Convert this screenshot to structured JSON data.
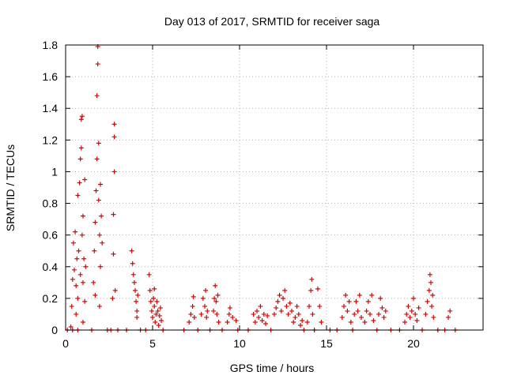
{
  "chart_data": {
    "type": "scatter",
    "title": "Day 013 of 2017, SRMTID for receiver saga",
    "xlabel": "GPS time / hours",
    "ylabel": "SRMTID / TECUs",
    "xlim": [
      0,
      24
    ],
    "ylim": [
      0,
      1.8
    ],
    "xticks": [
      "0",
      "5",
      "10",
      "15",
      "20"
    ],
    "xtick_values": [
      0,
      5,
      10,
      15,
      20
    ],
    "yticks": [
      "0",
      "0.2",
      "0.4",
      "0.6",
      "0.8",
      "1",
      "1.2",
      "1.4",
      "1.6",
      "1.8"
    ],
    "ytick_values": [
      0,
      0.2,
      0.4,
      0.6,
      0.8,
      1.0,
      1.2,
      1.4,
      1.6,
      1.8
    ],
    "grid": true,
    "marker": "plus",
    "color": "#e00000",
    "series": [
      {
        "name": "SRMTID",
        "points": [
          [
            0.3,
            0.02
          ],
          [
            0.35,
            0.15
          ],
          [
            0.4,
            0.32
          ],
          [
            0.45,
            0.55
          ],
          [
            0.5,
            0.38
          ],
          [
            0.55,
            0.62
          ],
          [
            0.6,
            0.28
          ],
          [
            0.65,
            0.45
          ],
          [
            0.7,
            0.85
          ],
          [
            0.7,
            0.2
          ],
          [
            0.75,
            0.5
          ],
          [
            0.8,
            0.93
          ],
          [
            0.85,
            1.08
          ],
          [
            0.9,
            1.15
          ],
          [
            0.9,
            1.33
          ],
          [
            0.95,
            1.35
          ],
          [
            0.95,
            0.6
          ],
          [
            1.0,
            0.3
          ],
          [
            1.0,
            0.72
          ],
          [
            1.05,
            0.45
          ],
          [
            1.1,
            0.18
          ],
          [
            1.1,
            0.95
          ],
          [
            1.15,
            0.4
          ],
          [
            0.6,
            0.1
          ],
          [
            0.85,
            0.35
          ],
          [
            1.0,
            0.05
          ],
          [
            1.6,
            0.3
          ],
          [
            1.65,
            0.5
          ],
          [
            1.7,
            0.68
          ],
          [
            1.75,
            0.88
          ],
          [
            1.8,
            1.08
          ],
          [
            1.8,
            1.48
          ],
          [
            1.85,
            1.68
          ],
          [
            1.85,
            1.79
          ],
          [
            1.9,
            1.18
          ],
          [
            1.9,
            0.82
          ],
          [
            1.95,
            0.6
          ],
          [
            2.0,
            0.4
          ],
          [
            2.0,
            0.92
          ],
          [
            2.05,
            0.72
          ],
          [
            2.1,
            0.55
          ],
          [
            1.7,
            0.22
          ],
          [
            1.95,
            0.15
          ],
          [
            2.7,
            0.2
          ],
          [
            2.75,
            0.48
          ],
          [
            2.75,
            0.73
          ],
          [
            2.8,
            1.0
          ],
          [
            2.8,
            1.22
          ],
          [
            2.8,
            1.3
          ],
          [
            2.85,
            0.25
          ],
          [
            3.8,
            0.5
          ],
          [
            3.85,
            0.42
          ],
          [
            3.9,
            0.35
          ],
          [
            3.95,
            0.3
          ],
          [
            4.0,
            0.25
          ],
          [
            4.05,
            0.18
          ],
          [
            4.1,
            0.12
          ],
          [
            4.1,
            0.08
          ],
          [
            4.15,
            0.22
          ],
          [
            4.8,
            0.35
          ],
          [
            4.85,
            0.25
          ],
          [
            4.9,
            0.18
          ],
          [
            4.95,
            0.12
          ],
          [
            5.0,
            0.08
          ],
          [
            5.05,
            0.2
          ],
          [
            5.1,
            0.15
          ],
          [
            5.15,
            0.05
          ],
          [
            5.2,
            0.1
          ],
          [
            5.25,
            0.18
          ],
          [
            5.3,
            0.12
          ],
          [
            5.35,
            0.03
          ],
          [
            5.4,
            0.09
          ],
          [
            5.45,
            0.14
          ],
          [
            5.5,
            0.06
          ],
          [
            5.1,
            0.26
          ],
          [
            7.1,
            0.05
          ],
          [
            7.2,
            0.1
          ],
          [
            7.3,
            0.15
          ],
          [
            7.35,
            0.21
          ],
          [
            7.4,
            0.08
          ],
          [
            7.8,
            0.1
          ],
          [
            7.9,
            0.2
          ],
          [
            8.0,
            0.15
          ],
          [
            8.05,
            0.25
          ],
          [
            8.1,
            0.08
          ],
          [
            8.15,
            0.12
          ],
          [
            8.5,
            0.12
          ],
          [
            8.55,
            0.2
          ],
          [
            8.6,
            0.28
          ],
          [
            8.65,
            0.18
          ],
          [
            8.7,
            0.1
          ],
          [
            8.75,
            0.22
          ],
          [
            8.8,
            0.05
          ],
          [
            9.3,
            0.05
          ],
          [
            9.4,
            0.1
          ],
          [
            9.45,
            0.14
          ],
          [
            9.6,
            0.08
          ],
          [
            9.8,
            0.06
          ],
          [
            10.8,
            0.1
          ],
          [
            10.9,
            0.05
          ],
          [
            11.0,
            0.12
          ],
          [
            11.1,
            0.08
          ],
          [
            11.2,
            0.15
          ],
          [
            11.3,
            0.06
          ],
          [
            11.4,
            0.1
          ],
          [
            11.5,
            0.04
          ],
          [
            11.6,
            0.09
          ],
          [
            12.0,
            0.1
          ],
          [
            12.1,
            0.14
          ],
          [
            12.2,
            0.18
          ],
          [
            12.3,
            0.22
          ],
          [
            12.4,
            0.12
          ],
          [
            12.5,
            0.2
          ],
          [
            12.6,
            0.25
          ],
          [
            12.7,
            0.15
          ],
          [
            12.8,
            0.1
          ],
          [
            12.9,
            0.17
          ],
          [
            13.0,
            0.12
          ],
          [
            13.1,
            0.05
          ],
          [
            13.2,
            0.08
          ],
          [
            13.3,
            0.15
          ],
          [
            13.4,
            0.1
          ],
          [
            13.5,
            0.03
          ],
          [
            13.6,
            0.06
          ],
          [
            13.9,
            0.05
          ],
          [
            14.0,
            0.15
          ],
          [
            14.1,
            0.25
          ],
          [
            14.15,
            0.32
          ],
          [
            14.2,
            0.1
          ],
          [
            14.5,
            0.26
          ],
          [
            14.6,
            0.15
          ],
          [
            14.7,
            0.05
          ],
          [
            15.9,
            0.08
          ],
          [
            16.0,
            0.15
          ],
          [
            16.1,
            0.22
          ],
          [
            16.2,
            0.12
          ],
          [
            16.3,
            0.18
          ],
          [
            16.4,
            0.05
          ],
          [
            16.6,
            0.1
          ],
          [
            16.7,
            0.18
          ],
          [
            16.8,
            0.12
          ],
          [
            16.9,
            0.22
          ],
          [
            17.0,
            0.08
          ],
          [
            17.2,
            0.05
          ],
          [
            17.3,
            0.12
          ],
          [
            17.4,
            0.18
          ],
          [
            17.5,
            0.1
          ],
          [
            17.6,
            0.22
          ],
          [
            17.7,
            0.06
          ],
          [
            18.0,
            0.1
          ],
          [
            18.1,
            0.2
          ],
          [
            18.2,
            0.14
          ],
          [
            18.3,
            0.08
          ],
          [
            18.4,
            0.12
          ],
          [
            19.5,
            0.05
          ],
          [
            19.6,
            0.1
          ],
          [
            19.7,
            0.15
          ],
          [
            19.8,
            0.08
          ],
          [
            19.9,
            0.12
          ],
          [
            20.0,
            0.2
          ],
          [
            20.1,
            0.1
          ],
          [
            20.2,
            0.06
          ],
          [
            20.3,
            0.14
          ],
          [
            20.7,
            0.1
          ],
          [
            20.8,
            0.18
          ],
          [
            20.9,
            0.25
          ],
          [
            21.0,
            0.3
          ],
          [
            20.95,
            0.35
          ],
          [
            21.05,
            0.15
          ],
          [
            21.1,
            0.22
          ],
          [
            21.15,
            0.08
          ],
          [
            22.0,
            0.08
          ],
          [
            22.1,
            0.12
          ],
          [
            0.1,
            0.0
          ],
          [
            0.4,
            0.0
          ],
          [
            0.7,
            0.0
          ],
          [
            1.5,
            0.0
          ],
          [
            2.4,
            0.0
          ],
          [
            2.6,
            0.0
          ],
          [
            3.0,
            0.0
          ],
          [
            3.5,
            0.0
          ],
          [
            4.3,
            0.0
          ],
          [
            4.6,
            0.0
          ],
          [
            5.6,
            0.0
          ],
          [
            6.8,
            0.0
          ],
          [
            7.6,
            0.0
          ],
          [
            8.3,
            0.0
          ],
          [
            9.0,
            0.0
          ],
          [
            9.9,
            0.0
          ],
          [
            10.5,
            0.0
          ],
          [
            11.8,
            0.0
          ],
          [
            13.7,
            0.0
          ],
          [
            14.3,
            0.0
          ],
          [
            15.2,
            0.0
          ],
          [
            15.6,
            0.0
          ],
          [
            16.5,
            0.0
          ],
          [
            17.9,
            0.0
          ],
          [
            18.7,
            0.0
          ],
          [
            19.2,
            0.0
          ],
          [
            20.5,
            0.0
          ],
          [
            21.4,
            0.0
          ],
          [
            21.8,
            0.0
          ],
          [
            22.4,
            0.0
          ]
        ]
      }
    ]
  }
}
